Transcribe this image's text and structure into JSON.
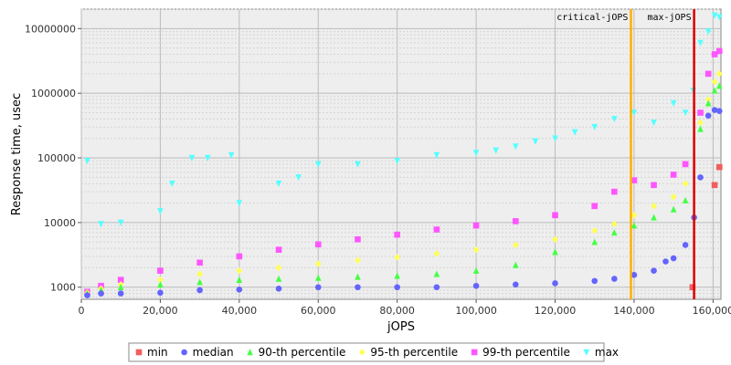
{
  "chart_data": {
    "type": "scatter",
    "xlabel": "jOPS",
    "ylabel": "Response time, usec",
    "xlim": [
      0,
      162000
    ],
    "ylim": [
      650,
      20000000
    ],
    "yscale": "log",
    "grid": true,
    "x_ticks": [
      0,
      20000,
      40000,
      60000,
      80000,
      100000,
      120000,
      140000,
      160000
    ],
    "x_tick_labels": [
      "0",
      "20,000",
      "40,000",
      "60,000",
      "80,000",
      "100,000",
      "120,000",
      "140,000",
      "160,000"
    ],
    "y_ticks": [
      1000,
      10000,
      100000,
      1000000,
      10000000
    ],
    "y_tick_labels": [
      "1000",
      "10000",
      "100000",
      "1000000",
      "10000000"
    ],
    "markers": [
      {
        "label": "critical-jOPS",
        "x": 139200,
        "color": "#ffb000"
      },
      {
        "label": "max-jOPS",
        "x": 155200,
        "color": "#dd0000"
      }
    ],
    "legend_position": "bottom",
    "series": [
      {
        "name": "min",
        "color": "#f15e5e",
        "marker": "square",
        "x": [
          154800,
          160400,
          161600
        ],
        "y": [
          1000,
          38000,
          72000
        ]
      },
      {
        "name": "median",
        "color": "#6464ff",
        "marker": "circle",
        "x": [
          1500,
          5000,
          10000,
          20000,
          30000,
          40000,
          50000,
          60000,
          70000,
          80000,
          90000,
          100000,
          110000,
          120000,
          130000,
          135000,
          140000,
          145000,
          148000,
          150000,
          153000,
          155200,
          156800,
          158800,
          160400,
          161600
        ],
        "y": [
          750,
          800,
          800,
          820,
          900,
          920,
          950,
          1000,
          1000,
          1000,
          1000,
          1050,
          1100,
          1150,
          1250,
          1350,
          1550,
          1800,
          2500,
          2800,
          4500,
          12000,
          50000,
          450000,
          550000,
          530000
        ]
      },
      {
        "name": "90-th percentile",
        "color": "#44ff44",
        "marker": "triangle-up",
        "x": [
          1500,
          5000,
          10000,
          20000,
          30000,
          40000,
          50000,
          60000,
          70000,
          80000,
          90000,
          100000,
          110000,
          120000,
          130000,
          135000,
          140000,
          145000,
          150000,
          153000,
          156800,
          158800,
          160400,
          161600
        ],
        "y": [
          800,
          900,
          1000,
          1100,
          1200,
          1300,
          1350,
          1400,
          1450,
          1500,
          1600,
          1800,
          2200,
          3500,
          5000,
          7000,
          9000,
          12000,
          16000,
          22000,
          280000,
          700000,
          1100000,
          1300000
        ]
      },
      {
        "name": "95-th percentile",
        "color": "#ffff55",
        "marker": "diamond",
        "x": [
          1500,
          5000,
          10000,
          20000,
          30000,
          40000,
          50000,
          60000,
          70000,
          80000,
          90000,
          100000,
          110000,
          120000,
          130000,
          135000,
          140000,
          145000,
          150000,
          153000,
          156800,
          158800,
          160400,
          161600
        ],
        "y": [
          820,
          950,
          1100,
          1300,
          1600,
          1800,
          2000,
          2300,
          2600,
          2900,
          3300,
          3800,
          4500,
          5500,
          7500,
          9500,
          13000,
          18000,
          25000,
          40000,
          350000,
          800000,
          1500000,
          2000000
        ]
      },
      {
        "name": "99-th percentile",
        "color": "#ff55ff",
        "marker": "square",
        "x": [
          1500,
          5000,
          10000,
          20000,
          30000,
          40000,
          50000,
          60000,
          70000,
          80000,
          90000,
          100000,
          110000,
          120000,
          130000,
          135000,
          140000,
          145000,
          150000,
          153000,
          156800,
          158800,
          160400,
          161600
        ],
        "y": [
          850,
          1050,
          1300,
          1800,
          2400,
          3000,
          3800,
          4600,
          5500,
          6500,
          7800,
          9000,
          10500,
          13000,
          18000,
          30000,
          45000,
          38000,
          55000,
          80000,
          500000,
          2000000,
          4000000,
          4500000
        ]
      },
      {
        "name": "max",
        "color": "#55ffff",
        "marker": "triangle-down",
        "x": [
          1500,
          5000,
          10000,
          20000,
          23000,
          28000,
          32000,
          38000,
          40000,
          50000,
          55000,
          60000,
          70000,
          80000,
          90000,
          100000,
          105000,
          110000,
          115000,
          120000,
          125000,
          130000,
          135000,
          140000,
          145000,
          150000,
          153000,
          155000,
          156800,
          158800,
          160400,
          161600
        ],
        "y": [
          90000,
          9500,
          10000,
          15000,
          40000,
          100000,
          100000,
          110000,
          20000,
          40000,
          50000,
          80000,
          80000,
          90000,
          110000,
          120000,
          130000,
          150000,
          180000,
          200000,
          250000,
          300000,
          400000,
          500000,
          350000,
          700000,
          500000,
          1100000,
          6000000,
          9000000,
          16000000,
          15000000
        ]
      }
    ]
  }
}
